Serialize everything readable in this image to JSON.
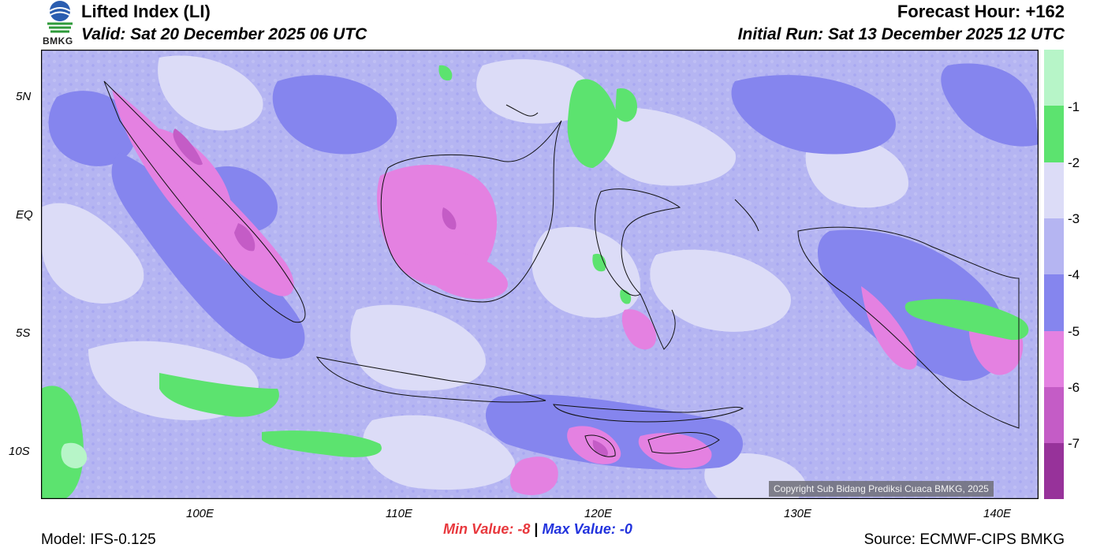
{
  "header": {
    "title": "Lifted Index (LI)",
    "valid": "Valid: Sat 20 December 2025 06 UTC",
    "forecast_hour": "Forecast Hour: +162",
    "initial_run": "Initial Run: Sat 13 December 2025 12 UTC",
    "logo_text": "BMKG"
  },
  "map": {
    "lat_labels": [
      "5N",
      "EQ",
      "5S",
      "10S"
    ],
    "lon_labels": [
      "100E",
      "110E",
      "120E",
      "130E",
      "140E"
    ],
    "copyright": "Copyright Sub Bidang Prediksi Cuaca BMKG, 2025"
  },
  "colorbar": {
    "labels": [
      "-1",
      "-2",
      "-3",
      "-4",
      "-5",
      "-6",
      "-7"
    ],
    "colors": [
      "#b7f5c8",
      "#5ce36f",
      "#dcdcf7",
      "#b5b5f2",
      "#8585ee",
      "#e481e1",
      "#c45cc6",
      "#97329a"
    ]
  },
  "stats": {
    "min_label": "Min Value:",
    "min_value": "-8",
    "separator": "|",
    "max_label": "Max Value:",
    "max_value": "-0"
  },
  "footer": {
    "model": "Model: IFS-0.125",
    "source": "Source: ECMWF-CIPS BMKG"
  }
}
